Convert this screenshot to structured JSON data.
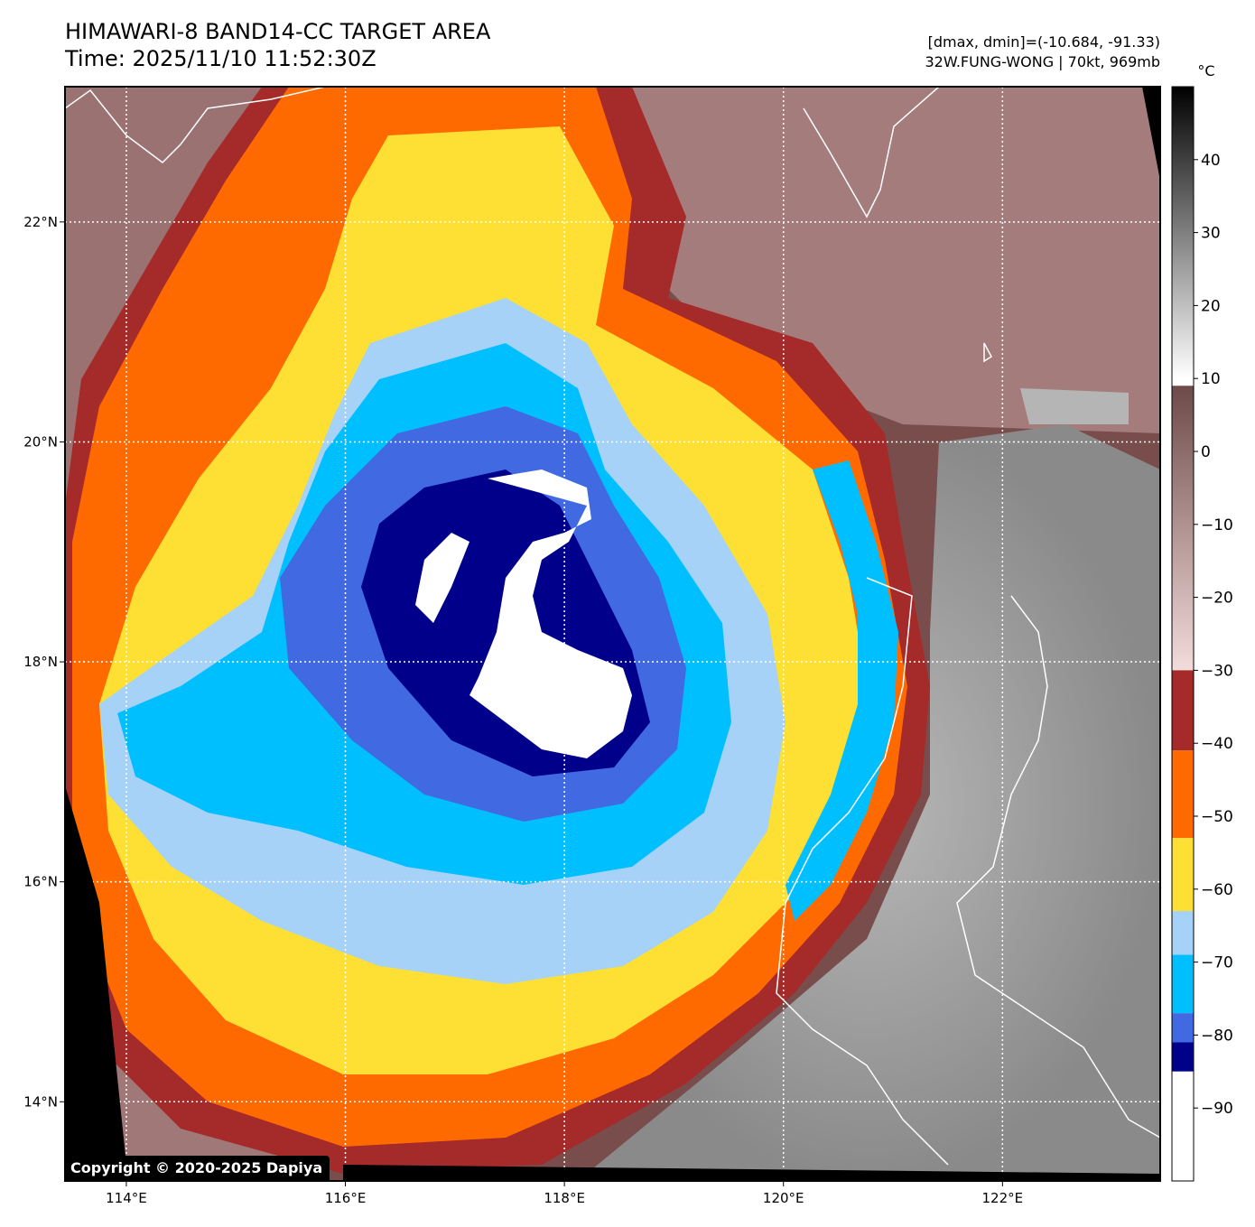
{
  "title": {
    "line1": "HIMAWARI-8 BAND14-CC TARGET AREA",
    "line2": "Time: 2025/11/10 11:52:30Z"
  },
  "info": {
    "range": "[dmax, dmin]=(-10.684, -91.33)",
    "storm": "32W.FUNG-WONG | 70kt, 969mb"
  },
  "map": {
    "lon_ticks": [
      "114°E",
      "116°E",
      "118°E",
      "120°E",
      "122°E"
    ],
    "lat_ticks": [
      "22°N",
      "20°N",
      "18°N",
      "16°N",
      "14°N"
    ],
    "lon_range": [
      113.44,
      123.44
    ],
    "lat_range": [
      13.28,
      23.23
    ],
    "grid_lons": [
      114,
      116,
      118,
      120,
      122
    ],
    "grid_lats": [
      22,
      20,
      18,
      16,
      14
    ],
    "eye_center": {
      "lon": 118.3,
      "lat": 18.2
    },
    "colors": {
      "white": "#ffffff",
      "navy": "#00008b",
      "royal-blue": "#4169e1",
      "deep-sky-blue": "#00bfff",
      "light-sky-blue": "#a6d2f7",
      "gold": "#fde033",
      "dark-orange": "#ff6a00",
      "brown": "#a52a2a",
      "warm-cloud": "#7a4d4d",
      "clear-land": "#9a9a9a"
    }
  },
  "colorbar": {
    "unit": "°C",
    "ticks": [
      "40",
      "30",
      "20",
      "10",
      "0",
      "−10",
      "−20",
      "−30",
      "−40",
      "−50",
      "−60",
      "−70",
      "−80",
      "−90"
    ],
    "tick_values": [
      40,
      30,
      20,
      10,
      0,
      -10,
      -20,
      -30,
      -40,
      -50,
      -60,
      -70,
      -80,
      -90
    ],
    "range": [
      -100,
      50
    ],
    "bands": [
      {
        "from": 50,
        "to": 10,
        "color": "#000000",
        "gradient_to": "#ffffff"
      },
      {
        "from": 9,
        "to": -30,
        "color": "#6e4a4a",
        "gradient_to": "#f3dcdc"
      },
      {
        "from": -30,
        "to": -41,
        "color": "#a52a2a"
      },
      {
        "from": -41,
        "to": -53,
        "color": "#ff6a00"
      },
      {
        "from": -53,
        "to": -63,
        "color": "#fde033"
      },
      {
        "from": -63,
        "to": -69,
        "color": "#a6d2f7"
      },
      {
        "from": -69,
        "to": -77,
        "color": "#00bfff"
      },
      {
        "from": -77,
        "to": -81,
        "color": "#4169e1"
      },
      {
        "from": -81,
        "to": -85,
        "color": "#00008b"
      },
      {
        "from": -85,
        "to": -100,
        "color": "#ffffff"
      }
    ]
  },
  "copyright": "Copyright © 2020-2025 Dapiya"
}
